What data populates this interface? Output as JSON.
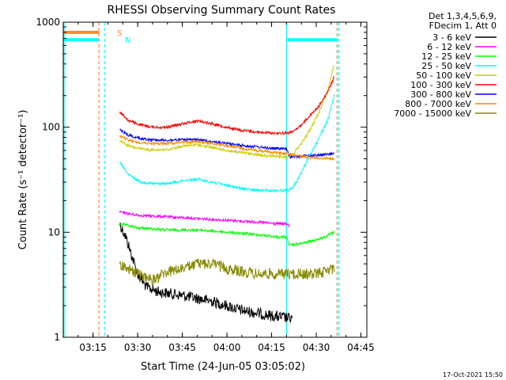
{
  "chart_data": {
    "type": "line",
    "title": "RHESSI Observing Summary Count Rates",
    "xlabel": "Start Time (24-Jun-05 03:05:02)",
    "ylabel": "Count Rate (s⁻¹ detector⁻¹)",
    "y_scale": "log",
    "ylim": [
      1,
      1000
    ],
    "x_unit": "minutes after 03:05",
    "xlim": [
      0,
      102
    ],
    "x_ticks": [
      {
        "value": 10,
        "label": "03:15"
      },
      {
        "value": 25,
        "label": "03:30"
      },
      {
        "value": 40,
        "label": "03:45"
      },
      {
        "value": 55,
        "label": "04:00"
      },
      {
        "value": 70,
        "label": "04:15"
      },
      {
        "value": 85,
        "label": "04:30"
      },
      {
        "value": 100,
        "label": "04:45"
      }
    ],
    "y_ticks": [
      {
        "value": 1,
        "label": "1"
      },
      {
        "value": 10,
        "label": "10"
      },
      {
        "value": 100,
        "label": "100"
      },
      {
        "value": 1000,
        "label": "1000"
      }
    ],
    "legend_header": [
      "Det 1,3,4,5,6,9,",
      "FDecim 1, Att 0"
    ],
    "legend_position": "right",
    "series": [
      {
        "name": "3 - 6 keV",
        "color": "#000000",
        "style": "noisy",
        "points": [
          [
            19,
            12
          ],
          [
            21,
            9
          ],
          [
            23,
            6
          ],
          [
            25,
            4
          ],
          [
            28,
            3
          ],
          [
            32,
            2.7
          ],
          [
            40,
            2.5
          ],
          [
            50,
            2.2
          ],
          [
            60,
            1.8
          ],
          [
            70,
            1.6
          ],
          [
            77,
            1.5
          ]
        ]
      },
      {
        "name": "6 - 12 keV",
        "color": "#ff00ff",
        "points": [
          [
            19,
            15.5
          ],
          [
            25,
            14.5
          ],
          [
            35,
            14
          ],
          [
            45,
            13.5
          ],
          [
            55,
            13
          ],
          [
            65,
            12.5
          ],
          [
            72,
            12
          ],
          [
            75,
            12
          ],
          [
            76,
            11.5
          ]
        ]
      },
      {
        "name": "12 - 25 keV",
        "color": "#00ff00",
        "points": [
          [
            19,
            12
          ],
          [
            25,
            11
          ],
          [
            35,
            10.5
          ],
          [
            45,
            10.5
          ],
          [
            55,
            10
          ],
          [
            65,
            9.5
          ],
          [
            72,
            9
          ],
          [
            75,
            9
          ],
          [
            76,
            7.5
          ],
          [
            80,
            7.8
          ],
          [
            84,
            8.3
          ],
          [
            88,
            9
          ],
          [
            91,
            10
          ]
        ]
      },
      {
        "name": "25 - 50 keV",
        "color": "#00ffff",
        "points": [
          [
            19,
            46
          ],
          [
            22,
            35
          ],
          [
            26,
            30
          ],
          [
            30,
            29
          ],
          [
            35,
            29
          ],
          [
            40,
            31
          ],
          [
            45,
            32
          ],
          [
            50,
            30
          ],
          [
            55,
            28
          ],
          [
            60,
            26
          ],
          [
            65,
            25
          ],
          [
            70,
            25
          ],
          [
            75,
            25
          ],
          [
            77,
            26
          ],
          [
            80,
            37
          ],
          [
            83,
            55
          ],
          [
            86,
            80
          ],
          [
            89,
            120
          ],
          [
            91,
            200
          ]
        ]
      },
      {
        "name": "50 - 100 keV",
        "color": "#cccc00",
        "points": [
          [
            19,
            75
          ],
          [
            22,
            66
          ],
          [
            26,
            62
          ],
          [
            30,
            61
          ],
          [
            35,
            61
          ],
          [
            40,
            66
          ],
          [
            45,
            68
          ],
          [
            50,
            64
          ],
          [
            55,
            60
          ],
          [
            60,
            57
          ],
          [
            65,
            55
          ],
          [
            70,
            53
          ],
          [
            75,
            52
          ],
          [
            77,
            55
          ],
          [
            80,
            70
          ],
          [
            83,
            95
          ],
          [
            86,
            140
          ],
          [
            89,
            230
          ],
          [
            91,
            400
          ]
        ]
      },
      {
        "name": "100 - 300 keV",
        "color": "#ff0000",
        "points": [
          [
            19,
            140
          ],
          [
            22,
            115
          ],
          [
            26,
            105
          ],
          [
            30,
            100
          ],
          [
            35,
            100
          ],
          [
            40,
            108
          ],
          [
            45,
            115
          ],
          [
            50,
            108
          ],
          [
            55,
            100
          ],
          [
            60,
            93
          ],
          [
            65,
            90
          ],
          [
            70,
            88
          ],
          [
            75,
            88
          ],
          [
            77,
            90
          ],
          [
            80,
            105
          ],
          [
            83,
            130
          ],
          [
            86,
            160
          ],
          [
            89,
            220
          ],
          [
            91,
            300
          ]
        ]
      },
      {
        "name": "300 - 800 keV",
        "color": "#0000ff",
        "points": [
          [
            19,
            95
          ],
          [
            22,
            84
          ],
          [
            26,
            78
          ],
          [
            30,
            76
          ],
          [
            35,
            75
          ],
          [
            40,
            76
          ],
          [
            45,
            76
          ],
          [
            50,
            73
          ],
          [
            55,
            70
          ],
          [
            60,
            67
          ],
          [
            65,
            65
          ],
          [
            70,
            63
          ],
          [
            75,
            62
          ],
          [
            76,
            52
          ],
          [
            80,
            53
          ],
          [
            85,
            54
          ],
          [
            91,
            56
          ]
        ]
      },
      {
        "name": "800 - 7000 keV",
        "color": "#ff8800",
        "points": [
          [
            19,
            82
          ],
          [
            22,
            75
          ],
          [
            26,
            71
          ],
          [
            30,
            70
          ],
          [
            35,
            70
          ],
          [
            40,
            72
          ],
          [
            45,
            73
          ],
          [
            50,
            70
          ],
          [
            55,
            67
          ],
          [
            60,
            63
          ],
          [
            65,
            60
          ],
          [
            70,
            58
          ],
          [
            75,
            56
          ],
          [
            80,
            53
          ],
          [
            85,
            51
          ],
          [
            91,
            50
          ]
        ]
      },
      {
        "name": "7000 - 15000 keV",
        "color": "#888800",
        "style": "noisy",
        "points": [
          [
            19,
            5
          ],
          [
            25,
            4
          ],
          [
            30,
            3.5
          ],
          [
            35,
            4.2
          ],
          [
            40,
            4.5
          ],
          [
            45,
            5
          ],
          [
            50,
            5
          ],
          [
            55,
            4.5
          ],
          [
            60,
            4.2
          ],
          [
            65,
            4
          ],
          [
            70,
            4
          ],
          [
            75,
            4
          ],
          [
            80,
            4
          ],
          [
            85,
            4
          ],
          [
            91,
            4.5
          ]
        ]
      }
    ],
    "flags": [
      {
        "label": "S",
        "color": "#ff8833",
        "value": 800,
        "segments": [
          [
            0,
            12
          ]
        ]
      },
      {
        "label": "N",
        "color": "#00ffff",
        "value": 680,
        "segments": [
          [
            0,
            12
          ],
          [
            75,
            92
          ]
        ]
      }
    ],
    "vertical_lines": [
      {
        "x": 0,
        "color": "#00ffff",
        "style": "solid"
      },
      {
        "x": 12,
        "color": "#ff8833",
        "style": "dashed"
      },
      {
        "x": 14,
        "color": "#00ffff",
        "style": "dashed"
      },
      {
        "x": 75,
        "color": "#00ffff",
        "style": "solid"
      },
      {
        "x": 92,
        "color": "#ff8833",
        "style": "dashed"
      },
      {
        "x": 92.6,
        "color": "#00ffff",
        "style": "dashed"
      }
    ]
  },
  "footer": {
    "timestamp": "17-Oct-2021 15:50"
  }
}
